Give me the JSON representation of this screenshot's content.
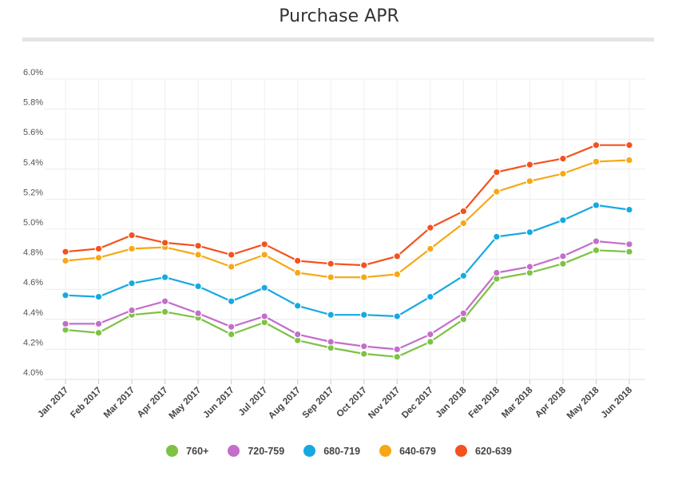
{
  "chart_data": {
    "type": "line",
    "title": "Purchase APR",
    "categories": [
      "Jan 2017",
      "Feb 2017",
      "Mar 2017",
      "Apr 2017",
      "May 2017",
      "Jun 2017",
      "Jul 2017",
      "Aug 2017",
      "Sep 2017",
      "Oct 2017",
      "Nov 2017",
      "Dec 2017",
      "Jan 2018",
      "Feb 2018",
      "Mar 2018",
      "Apr 2018",
      "May 2018",
      "Jun 2018"
    ],
    "ylim": [
      4.0,
      6.0
    ],
    "yticks": [
      "4.0%",
      "4.2%",
      "4.4%",
      "4.6%",
      "4.8%",
      "5.0%",
      "5.2%",
      "5.4%",
      "5.6%",
      "5.8%",
      "6.0%"
    ],
    "grid": true,
    "legend_position": "bottom",
    "series": [
      {
        "name": "760+",
        "color": "#7dc243",
        "values": [
          4.33,
          4.31,
          4.43,
          4.45,
          4.41,
          4.3,
          4.38,
          4.26,
          4.21,
          4.17,
          4.15,
          4.25,
          4.4,
          4.67,
          4.71,
          4.77,
          4.86,
          4.85
        ]
      },
      {
        "name": "720-759",
        "color": "#c36ec9",
        "values": [
          4.37,
          4.37,
          4.46,
          4.52,
          4.44,
          4.35,
          4.42,
          4.3,
          4.25,
          4.22,
          4.2,
          4.3,
          4.44,
          4.71,
          4.75,
          4.82,
          4.92,
          4.9
        ]
      },
      {
        "name": "680-719",
        "color": "#16a9e1",
        "values": [
          4.56,
          4.55,
          4.64,
          4.68,
          4.62,
          4.52,
          4.61,
          4.49,
          4.43,
          4.43,
          4.42,
          4.55,
          4.69,
          4.95,
          4.98,
          5.06,
          5.16,
          5.13
        ]
      },
      {
        "name": "640-679",
        "color": "#f7a814",
        "values": [
          4.79,
          4.81,
          4.87,
          4.88,
          4.83,
          4.75,
          4.83,
          4.71,
          4.68,
          4.68,
          4.7,
          4.87,
          5.04,
          5.25,
          5.32,
          5.37,
          5.45,
          5.46
        ]
      },
      {
        "name": "620-639",
        "color": "#f4511e",
        "values": [
          4.85,
          4.87,
          4.96,
          4.91,
          4.89,
          4.83,
          4.9,
          4.79,
          4.77,
          4.76,
          4.82,
          5.01,
          5.12,
          5.38,
          5.43,
          5.47,
          5.56,
          5.56
        ]
      }
    ]
  }
}
